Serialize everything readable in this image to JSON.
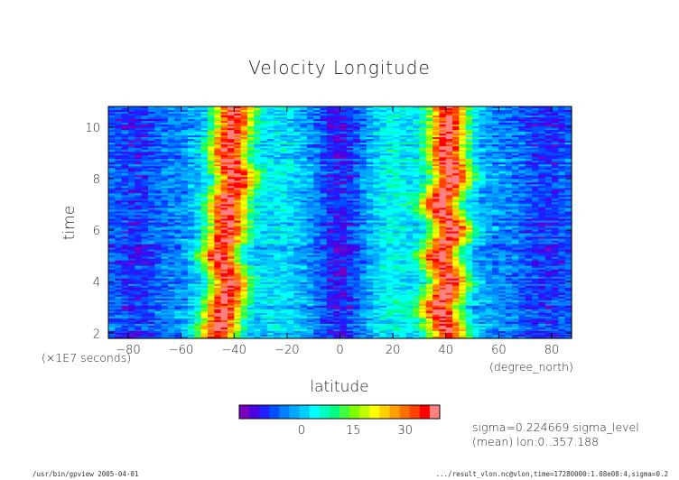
{
  "chart_data": {
    "type": "heatmap",
    "title": "Velocity Longitude",
    "xlabel": "latitude",
    "x_unit": "(degree_north)",
    "ylabel": "time",
    "y_unit": "(×1E7 seconds)",
    "xlim": [
      -87.5,
      87.5
    ],
    "ylim": [
      1.8,
      10.8
    ],
    "x_ticks": [
      -80,
      -60,
      -40,
      -20,
      0,
      20,
      40,
      60,
      80
    ],
    "y_ticks": [
      2,
      4,
      6,
      8,
      10
    ],
    "jet_centers": [
      {
        "time": 2,
        "north": 41,
        "south": -46
      },
      {
        "time": 3,
        "north": 37,
        "south": -44
      },
      {
        "time": 4,
        "north": 42,
        "south": -41
      },
      {
        "time": 5,
        "north": 37,
        "south": -46
      },
      {
        "time": 6,
        "north": 43,
        "south": -42
      },
      {
        "time": 7,
        "north": 37,
        "south": -43
      },
      {
        "time": 8,
        "north": 43,
        "south": -39
      },
      {
        "time": 9,
        "north": 40,
        "south": -43
      },
      {
        "time": 10,
        "north": 41,
        "south": -40
      }
    ],
    "jet_peak": 38,
    "equator_min": -12,
    "colorbar": {
      "ticks": [
        0,
        15,
        30
      ],
      "min": -18,
      "max": 40,
      "colors": [
        "#7a00c0",
        "#4b00e0",
        "#1f1fff",
        "#0050ff",
        "#0080ff",
        "#00a8ff",
        "#00d0ff",
        "#00ffff",
        "#00ffc0",
        "#00ff80",
        "#40ff40",
        "#80ff00",
        "#c0ff00",
        "#ffff00",
        "#ffd000",
        "#ffa000",
        "#ff7000",
        "#ff4000",
        "#ff0000",
        "#ff8080"
      ]
    }
  },
  "annotations": {
    "sigma_line": "sigma=0.224669 sigma_level",
    "mean_line": "(mean) lon:0..357.188"
  },
  "footer": {
    "left": "/usr/bin/gpview  2005-04-01",
    "right": ".../result_vlon.nc@vlon,time=17280000:1.08e08:4,sigma=0.2"
  }
}
